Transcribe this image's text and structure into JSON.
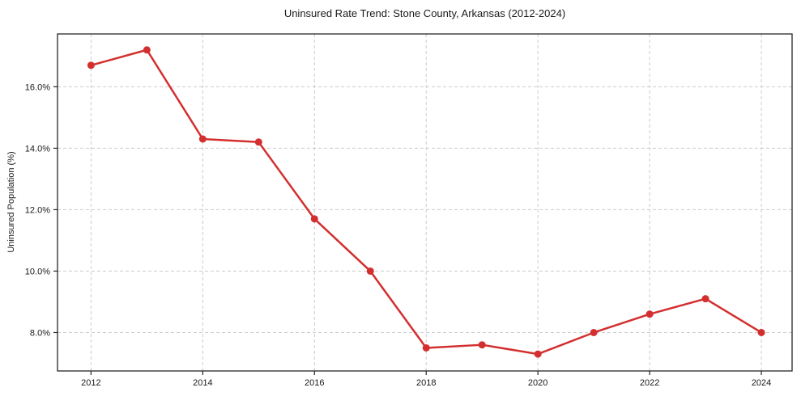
{
  "chart_data": {
    "type": "line",
    "title": "Uninsured Rate Trend: Stone County, Arkansas (2012-2024)",
    "xlabel": "",
    "ylabel": "Uninsured Population (%)",
    "x": [
      2012,
      2013,
      2014,
      2015,
      2016,
      2017,
      2018,
      2019,
      2020,
      2021,
      2022,
      2023,
      2024
    ],
    "values": [
      16.7,
      17.2,
      14.3,
      14.2,
      11.7,
      10.0,
      7.5,
      7.6,
      7.3,
      8.0,
      8.6,
      9.1,
      8.0
    ],
    "xtick_values": [
      2012,
      2014,
      2016,
      2018,
      2020,
      2022,
      2024
    ],
    "xtick_labels": [
      "2012",
      "2014",
      "2016",
      "2018",
      "2020",
      "2022",
      "2024"
    ],
    "ytick_values": [
      8,
      10,
      12,
      14,
      16
    ],
    "ytick_labels": [
      "8.0%",
      "10.0%",
      "12.0%",
      "14.0%",
      "16.0%"
    ],
    "xlim": [
      2011.4,
      2024.55
    ],
    "ylim": [
      6.75,
      17.72
    ],
    "grid": "both",
    "grid_style": "dashed",
    "legend": "none",
    "marker": "circle",
    "line_color": "#d32f2f",
    "grid_color": "#cccccc",
    "axis_color": "#262626",
    "text_color": "#1a1a1a",
    "background": "#ffffff"
  }
}
